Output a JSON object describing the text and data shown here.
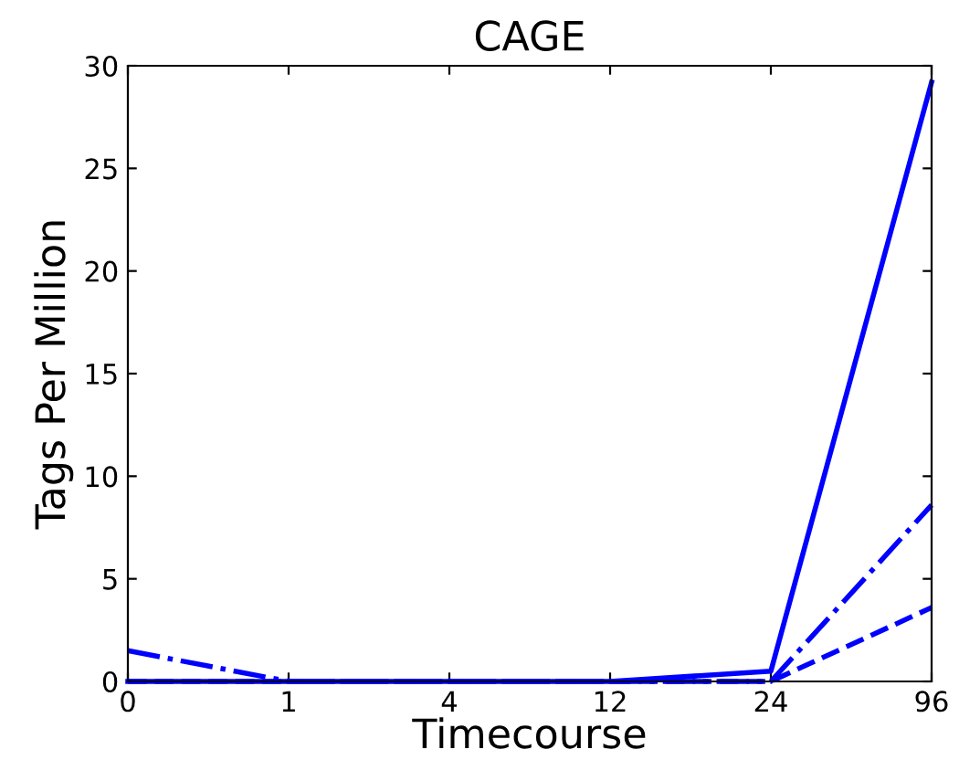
{
  "chart_data": {
    "type": "line",
    "title": "CAGE",
    "xlabel": "Timecourse",
    "ylabel": "Tags Per Million",
    "categories": [
      "0",
      "1",
      "4",
      "12",
      "24",
      "96"
    ],
    "series": [
      {
        "color": "#0000ff",
        "line_style": "solid",
        "values": [
          0,
          0,
          0,
          0,
          0.5,
          29.2
        ]
      },
      {
        "color": "#0000ff",
        "line_style": "dashdot",
        "values": [
          1.5,
          0,
          0,
          0,
          0,
          8.6
        ]
      },
      {
        "color": "#0000ff",
        "line_style": "dashed",
        "values": [
          0,
          0,
          0,
          0,
          0,
          3.6
        ]
      }
    ],
    "ylim": [
      0,
      30
    ],
    "yticks": [
      0,
      5,
      10,
      15,
      20,
      25,
      30
    ],
    "grid": false,
    "legend": false,
    "marker": "none"
  }
}
